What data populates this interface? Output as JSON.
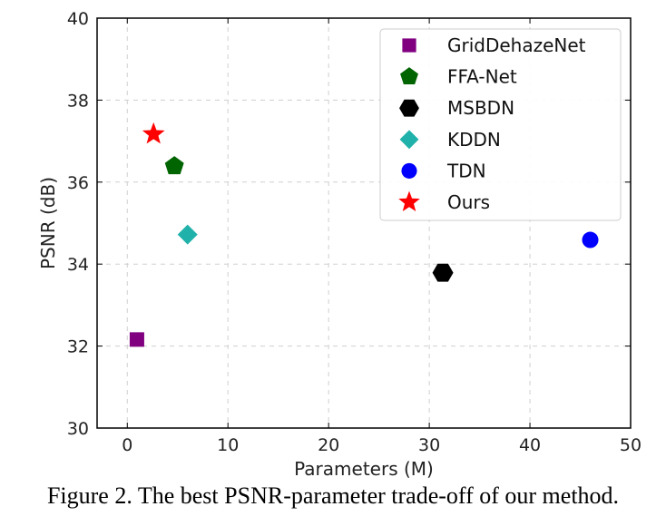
{
  "chart_data": {
    "type": "scatter",
    "title": "",
    "xlabel": "Parameters (M)",
    "ylabel": "PSNR (dB)",
    "xlim": [
      -3,
      50
    ],
    "ylim": [
      30,
      40
    ],
    "xticks": [
      "0",
      "10",
      "20",
      "30",
      "40",
      "50"
    ],
    "yticks": [
      "30",
      "32",
      "34",
      "36",
      "38",
      "40"
    ],
    "grid": true,
    "legend_position": "top-right",
    "series": [
      {
        "name": "GridDehazeNet",
        "marker": "square",
        "color": "#800080",
        "x": 0.96,
        "y": 32.16
      },
      {
        "name": "FFA-Net",
        "marker": "pentagon",
        "color": "#006400",
        "x": 4.68,
        "y": 36.39
      },
      {
        "name": "MSBDN",
        "marker": "hexagon",
        "color": "#000000",
        "x": 31.35,
        "y": 33.79
      },
      {
        "name": "KDDN",
        "marker": "diamond",
        "color": "#20B2AA",
        "x": 5.99,
        "y": 34.72
      },
      {
        "name": "TDN",
        "marker": "circle",
        "color": "#0000FF",
        "x": 45.99,
        "y": 34.59
      },
      {
        "name": "Ours",
        "marker": "star",
        "color": "#FF0000",
        "x": 2.61,
        "y": 37.17
      }
    ]
  },
  "caption": "Figure 2. The best PSNR-parameter trade-off of our method."
}
